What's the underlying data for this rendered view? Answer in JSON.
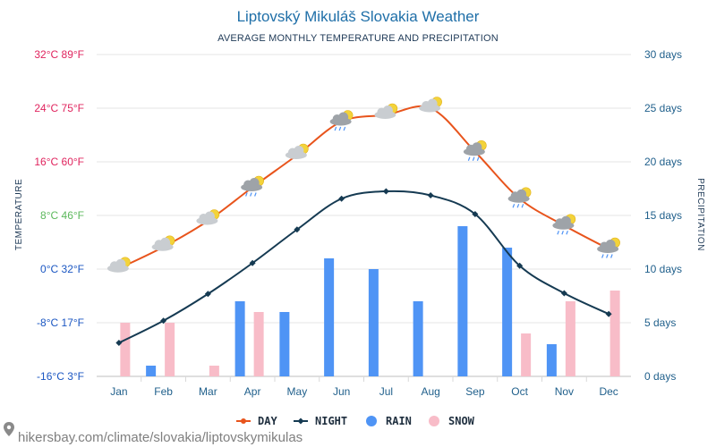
{
  "title": "Liptovský Mikuláš Slovakia Weather",
  "subtitle": "AVERAGE MONTHLY TEMPERATURE AND PRECIPITATION",
  "source": "hikersbay.com/climate/slovakia/liptovskymikulas",
  "chart_data": {
    "type": "line+bar",
    "categories": [
      "Jan",
      "Feb",
      "Mar",
      "Apr",
      "May",
      "Jun",
      "Jul",
      "Aug",
      "Sep",
      "Oct",
      "Nov",
      "Dec"
    ],
    "left_axis": {
      "title": "TEMPERATURE",
      "unit": "°C",
      "range": [
        -16,
        32
      ],
      "ticks": [
        {
          "value": 32,
          "label": "32°C 89°F",
          "color": "#e0245e"
        },
        {
          "value": 24,
          "label": "24°C 75°F",
          "color": "#e0245e"
        },
        {
          "value": 16,
          "label": "16°C 60°F",
          "color": "#e0245e"
        },
        {
          "value": 8,
          "label": "8°C 46°F",
          "color": "#5cb85c"
        },
        {
          "value": 0,
          "label": "0°C 32°F",
          "color": "#1a56c2"
        },
        {
          "value": -8,
          "label": "-8°C 17°F",
          "color": "#1a56c2"
        },
        {
          "value": -16,
          "label": "-16°C 3°F",
          "color": "#1a56c2"
        }
      ]
    },
    "right_axis": {
      "title": "PRECIPITATION",
      "unit": "days",
      "range": [
        0,
        30
      ],
      "ticks": [
        {
          "value": 30,
          "label": "30 days"
        },
        {
          "value": 25,
          "label": "25 days"
        },
        {
          "value": 20,
          "label": "20 days"
        },
        {
          "value": 15,
          "label": "15 days"
        },
        {
          "value": 10,
          "label": "10 days"
        },
        {
          "value": 5,
          "label": "5 days"
        },
        {
          "value": 0,
          "label": "0 days"
        }
      ]
    },
    "series": [
      {
        "name": "DAY",
        "type": "line",
        "axis": "left",
        "color": "#e8541c",
        "values": [
          0.1,
          3.3,
          7.2,
          12.2,
          17.0,
          22.0,
          23.0,
          24.0,
          17.5,
          10.5,
          6.5,
          3.0
        ]
      },
      {
        "name": "NIGHT",
        "type": "line",
        "axis": "left",
        "color": "#153a52",
        "values": [
          -11.0,
          -7.7,
          -3.7,
          0.9,
          5.9,
          10.5,
          11.6,
          11.0,
          8.2,
          0.5,
          -3.6,
          -6.7
        ]
      },
      {
        "name": "RAIN",
        "type": "bar",
        "axis": "right",
        "color": "#4f94f5",
        "values": [
          0,
          1,
          0,
          7,
          6,
          11,
          10,
          7,
          14,
          12,
          3,
          0
        ]
      },
      {
        "name": "SNOW",
        "type": "bar",
        "axis": "right",
        "color": "#f8bcc8",
        "values": [
          5,
          5,
          1,
          6,
          0,
          0,
          0,
          0,
          0,
          4,
          7,
          8
        ]
      }
    ],
    "weather_icons": [
      "sun-cloud",
      "sun-cloud",
      "sun-cloud",
      "rain-cloud",
      "sun-cloud",
      "rain-cloud",
      "sun-cloud",
      "sun-cloud",
      "rain-cloud",
      "rain-cloud",
      "rain-cloud",
      "rain-cloud"
    ]
  },
  "legend": [
    {
      "label": "DAY",
      "color": "#e8541c",
      "marker": "line-dot"
    },
    {
      "label": "NIGHT",
      "color": "#153a52",
      "marker": "line-diamond"
    },
    {
      "label": "RAIN",
      "color": "#4f94f5",
      "marker": "dot"
    },
    {
      "label": "SNOW",
      "color": "#f8bcc8",
      "marker": "dot"
    }
  ]
}
